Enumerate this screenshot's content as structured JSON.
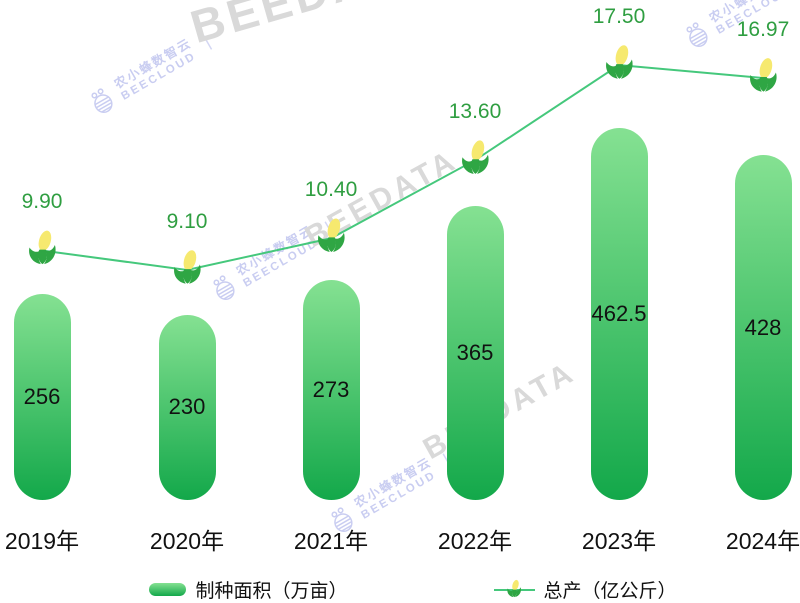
{
  "watermark": {
    "brand_cn": "农小蜂数智云",
    "brand_en": "BEECLOUD",
    "data_brand": "BEEDATA",
    "separator": "|"
  },
  "legend": {
    "bar_label": "制种面积（万亩）",
    "line_label": "总产（亿公斤）"
  },
  "colors": {
    "bar-top": "#85e192",
    "bar-bottom": "#13a84a",
    "line": "#45c87c",
    "line-label": "#2f9e41",
    "text": "#111111",
    "wm-purple": "#c9cdf1",
    "wm-gray": "#d9d9d9",
    "corn-cob": "#f6e96f",
    "corn-leaf": "#2fa644"
  },
  "chart_data": {
    "type": "bar",
    "subtype": "bar+line combo",
    "categories": [
      "2019年",
      "2020年",
      "2021年",
      "2022年",
      "2023年",
      "2024年"
    ],
    "series": [
      {
        "name": "制种面积（万亩）",
        "type": "bar",
        "values": [
          256,
          230,
          273,
          365,
          462.5,
          428
        ],
        "value_labels": [
          "256",
          "230",
          "273",
          "365",
          "462.5",
          "428"
        ]
      },
      {
        "name": "总产（亿公斤）",
        "type": "line",
        "marker": "corn-icon",
        "values": [
          9.9,
          9.1,
          10.4,
          13.6,
          17.5,
          16.97
        ],
        "value_labels": [
          "9.90",
          "9.10",
          "10.40",
          "13.60",
          "17.50",
          "16.97"
        ]
      }
    ],
    "title": "",
    "xlabel": "",
    "ylabel": "",
    "grid": false,
    "axes_visible": false,
    "legend_position": "bottom",
    "bar_value_position": "inside-center",
    "line_value_position": "above-marker"
  }
}
